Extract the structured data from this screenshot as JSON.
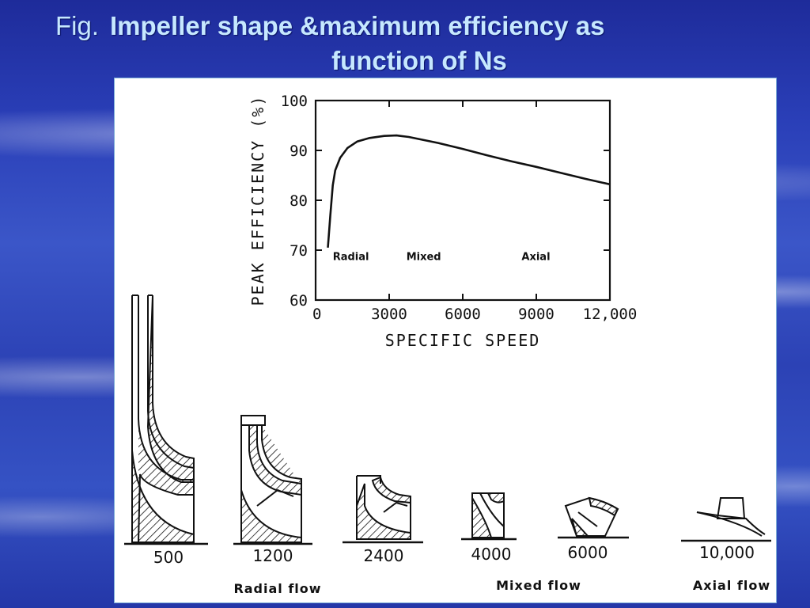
{
  "slide": {
    "title_prefix": "Fig.",
    "title_main": "Impeller shape &maximum efficiency as",
    "title_line2": "function of Ns"
  },
  "chart_data": {
    "type": "line",
    "title": "",
    "xlabel": "SPECIFIC SPEED",
    "ylabel": "PEAK EFFICIENCY (%)",
    "xlim": [
      0,
      12000
    ],
    "ylim": [
      60,
      100
    ],
    "xticks": [
      0,
      3000,
      6000,
      9000,
      12000
    ],
    "xtick_labels": [
      "0",
      "3000",
      "6000",
      "9000",
      "12,000"
    ],
    "yticks": [
      60,
      70,
      80,
      90,
      100
    ],
    "ytick_labels": [
      "60",
      "70",
      "80",
      "90",
      "100"
    ],
    "grid": false,
    "series": [
      {
        "x": [
          500,
          600,
          700,
          800,
          1000,
          1300,
          1700,
          2200,
          2800,
          3300,
          3800,
          5000,
          6000,
          7000,
          8000,
          9000,
          10000,
          11000,
          12000
        ],
        "y": [
          70.5,
          77,
          83,
          86,
          88.5,
          90.5,
          91.8,
          92.5,
          92.9,
          93,
          92.7,
          91.5,
          90.3,
          89,
          87.8,
          86.7,
          85.5,
          84.3,
          83.2
        ]
      }
    ],
    "region_labels": [
      {
        "text": "Radial",
        "x": 700
      },
      {
        "text": "Mixed",
        "x": 3700
      },
      {
        "text": "Axial",
        "x": 8400
      }
    ]
  },
  "impellers": {
    "ns_values": [
      "500",
      "1200",
      "2400",
      "4000",
      "6000",
      "10,000"
    ],
    "flow_labels": [
      "Radial flow",
      "Mixed flow",
      "Axial flow"
    ]
  },
  "colors": {
    "title": "#c6e8ff",
    "background": "#2a3fb8",
    "panel": "#ffffff"
  }
}
